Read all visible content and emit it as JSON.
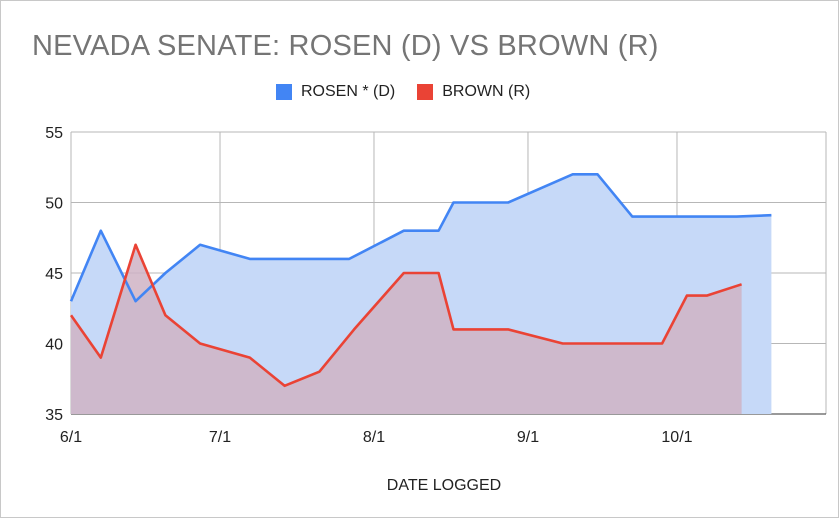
{
  "colors": {
    "rosen": "#4285f4",
    "rosen_fill": "#c6d9f8",
    "brown": "#ea4335",
    "brown_fill": "#cfb3c4",
    "grid": "#b7b7b7",
    "axis_text": "#222222",
    "title": "#757575"
  },
  "chart_data": {
    "type": "area",
    "title": "NEVADA SENATE: ROSEN (D) VS BROWN (R)",
    "xlabel": "DATE LOGGED",
    "ylabel": "",
    "x_tick_labels": [
      "6/1",
      "7/1",
      "8/1",
      "9/1",
      "10/1"
    ],
    "x_axis_range": [
      "2024-06-01",
      "2024-10-31"
    ],
    "ylim": [
      35,
      55
    ],
    "y_ticks": [
      35,
      40,
      45,
      50,
      55
    ],
    "grid": true,
    "legend_position": "top",
    "series": [
      {
        "name": "ROSEN * (D)",
        "points": [
          [
            "2024-06-01",
            43
          ],
          [
            "2024-06-07",
            48
          ],
          [
            "2024-06-14",
            43
          ],
          [
            "2024-06-20",
            45
          ],
          [
            "2024-06-27",
            47
          ],
          [
            "2024-07-07",
            46
          ],
          [
            "2024-07-27",
            46
          ],
          [
            "2024-08-07",
            48
          ],
          [
            "2024-08-14",
            48
          ],
          [
            "2024-08-17",
            50
          ],
          [
            "2024-08-28",
            50
          ],
          [
            "2024-09-10",
            52
          ],
          [
            "2024-09-15",
            52
          ],
          [
            "2024-09-22",
            49
          ],
          [
            "2024-10-07",
            49
          ],
          [
            "2024-10-13",
            49
          ],
          [
            "2024-10-20",
            49.1
          ]
        ]
      },
      {
        "name": "BROWN (R)",
        "points": [
          [
            "2024-06-01",
            42
          ],
          [
            "2024-06-07",
            39
          ],
          [
            "2024-06-14",
            47
          ],
          [
            "2024-06-20",
            42
          ],
          [
            "2024-06-27",
            40
          ],
          [
            "2024-07-07",
            39
          ],
          [
            "2024-07-14",
            37
          ],
          [
            "2024-07-21",
            38
          ],
          [
            "2024-07-28",
            41
          ],
          [
            "2024-08-07",
            45
          ],
          [
            "2024-08-14",
            45
          ],
          [
            "2024-08-17",
            41
          ],
          [
            "2024-08-28",
            41
          ],
          [
            "2024-09-08",
            40
          ],
          [
            "2024-09-28",
            40
          ],
          [
            "2024-10-03",
            43.4
          ],
          [
            "2024-10-07",
            43.4
          ],
          [
            "2024-10-14",
            44.2
          ]
        ]
      }
    ]
  }
}
